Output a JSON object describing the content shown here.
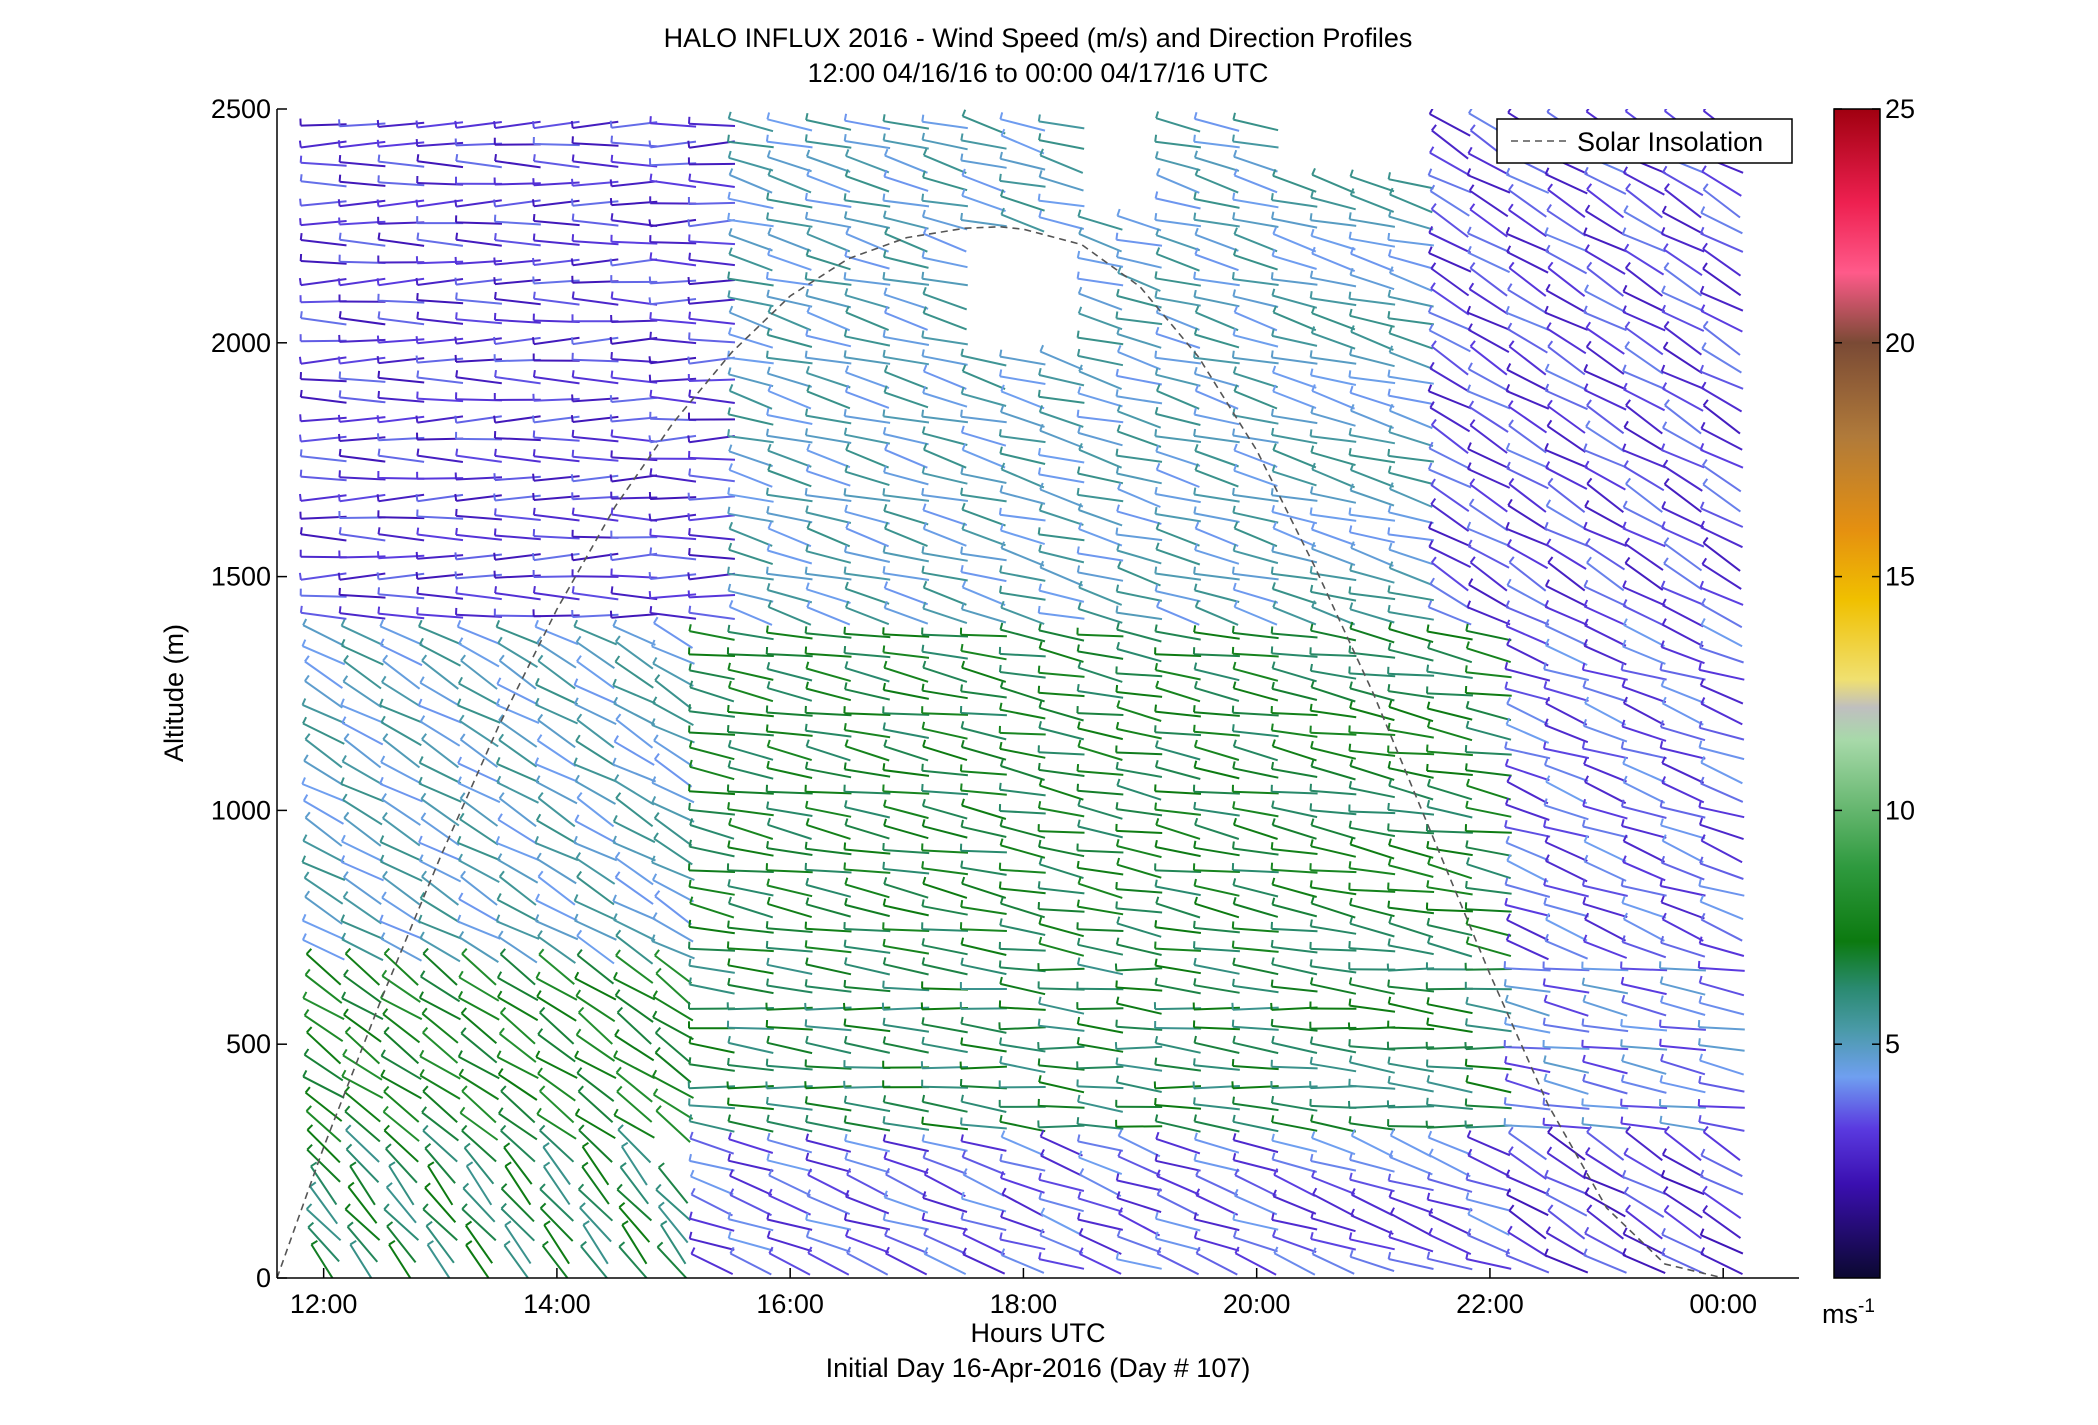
{
  "chart_data": {
    "type": "wind-barb-profile",
    "title": "HALO INFLUX 2016 - Wind Speed (m/s) and Direction Profiles",
    "subtitle": "12:00 04/16/16 to 00:00 04/17/16  UTC",
    "xlabel": "Hours UTC",
    "xlabel2": "Initial Day 16-Apr-2016 (Day # 107)",
    "ylabel": "Altitude (m)",
    "xlim": [
      11.6,
      24.65
    ],
    "ylim": [
      0,
      2500
    ],
    "x_ticks": [
      12,
      14,
      16,
      18,
      20,
      22,
      24
    ],
    "x_tick_labels": [
      "12:00",
      "14:00",
      "16:00",
      "18:00",
      "20:00",
      "22:00",
      "00:00"
    ],
    "y_ticks": [
      0,
      500,
      1000,
      1500,
      2000,
      2500
    ],
    "y_tick_labels": [
      "0",
      "500",
      "1000",
      "1500",
      "2000",
      "2500"
    ],
    "legend": {
      "label": "Solar Insolation",
      "placement": "top-right",
      "style": "dashed",
      "color": "#555555"
    },
    "colorbar": {
      "range": [
        0,
        25
      ],
      "ticks": [
        5,
        10,
        15,
        20,
        25
      ],
      "tick_labels": [
        "5",
        "10",
        "15",
        "20",
        "25"
      ],
      "unit_label": "ms",
      "unit_exponent": "-1",
      "stops": [
        {
          "v": 0,
          "c": "#0b0830"
        },
        {
          "v": 2,
          "c": "#3a0fb0"
        },
        {
          "v": 3.2,
          "c": "#5a3ae0"
        },
        {
          "v": 4.3,
          "c": "#6f9ff0"
        },
        {
          "v": 5.3,
          "c": "#4a9aa8"
        },
        {
          "v": 6.2,
          "c": "#2a8a70"
        },
        {
          "v": 7.2,
          "c": "#0c7a10"
        },
        {
          "v": 8.8,
          "c": "#2f9a3f"
        },
        {
          "v": 11.5,
          "c": "#a7d9a9"
        },
        {
          "v": 12.2,
          "c": "#bfbfbf"
        },
        {
          "v": 12.8,
          "c": "#f0e070"
        },
        {
          "v": 14.5,
          "c": "#f0c000"
        },
        {
          "v": 16,
          "c": "#e59010"
        },
        {
          "v": 18,
          "c": "#b07a3a"
        },
        {
          "v": 20,
          "c": "#7a4a35"
        },
        {
          "v": 21.5,
          "c": "#ff5a8a"
        },
        {
          "v": 23,
          "c": "#ee2050"
        },
        {
          "v": 25,
          "c": "#a00010"
        }
      ]
    },
    "solar_insolation": {
      "x": [
        11.6,
        12.0,
        12.5,
        13.0,
        13.5,
        14.0,
        14.5,
        15.0,
        15.5,
        16.0,
        16.5,
        17.0,
        17.5,
        17.8,
        18.0,
        18.5,
        19.0,
        19.5,
        20.0,
        20.5,
        21.0,
        21.5,
        22.0,
        22.5,
        23.0,
        23.5,
        24.0
      ],
      "y": [
        0,
        280,
        600,
        900,
        1180,
        1430,
        1650,
        1830,
        1980,
        2100,
        2180,
        2225,
        2245,
        2248,
        2243,
        2210,
        2120,
        1970,
        1770,
        1520,
        1250,
        950,
        650,
        370,
        150,
        30,
        0
      ]
    },
    "wind_profiles": {
      "note": "Sampled from the figure: barb direction (deg, meteorological, wind-from) and speed (m/s) per time/altitude. Missing cells are blank.",
      "time_start": 12.0,
      "time_end": 24.0,
      "time_step": 0.333,
      "altitude_start": 30,
      "altitude_step": 42,
      "altitude_end": 2490,
      "layers": [
        {
          "z_top": 300,
          "t_start": 12.0,
          "t_end": 15.0,
          "dir": 320,
          "speed": 6.5
        },
        {
          "z_top": 300,
          "t_start": 15.0,
          "t_end": 22.0,
          "dir": 290,
          "speed": 3.5
        },
        {
          "z_top": 300,
          "t_start": 22.0,
          "t_end": 24.0,
          "dir": 300,
          "speed": 3.0
        },
        {
          "z_top": 700,
          "t_start": 12.0,
          "t_end": 15.0,
          "dir": 305,
          "speed": 7.5
        },
        {
          "z_top": 700,
          "t_start": 15.0,
          "t_end": 22.0,
          "dir": 275,
          "speed": 6.5
        },
        {
          "z_top": 700,
          "t_start": 22.0,
          "t_end": 24.0,
          "dir": 280,
          "speed": 4.0
        },
        {
          "z_top": 1400,
          "t_start": 12.0,
          "t_end": 15.0,
          "dir": 300,
          "speed": 5.0
        },
        {
          "z_top": 1400,
          "t_start": 15.0,
          "t_end": 22.0,
          "dir": 280,
          "speed": 7.0
        },
        {
          "z_top": 1400,
          "t_start": 22.0,
          "t_end": 24.0,
          "dir": 290,
          "speed": 3.5
        },
        {
          "z_top": 2500,
          "t_start": 12.0,
          "t_end": 15.5,
          "dir": 270,
          "speed": 3.0
        },
        {
          "z_top": 2500,
          "t_start": 15.5,
          "t_end": 21.5,
          "dir": 285,
          "speed": 5.0
        },
        {
          "z_top": 2500,
          "t_start": 21.5,
          "t_end": 24.0,
          "dir": 300,
          "speed": 3.2
        }
      ]
    }
  }
}
